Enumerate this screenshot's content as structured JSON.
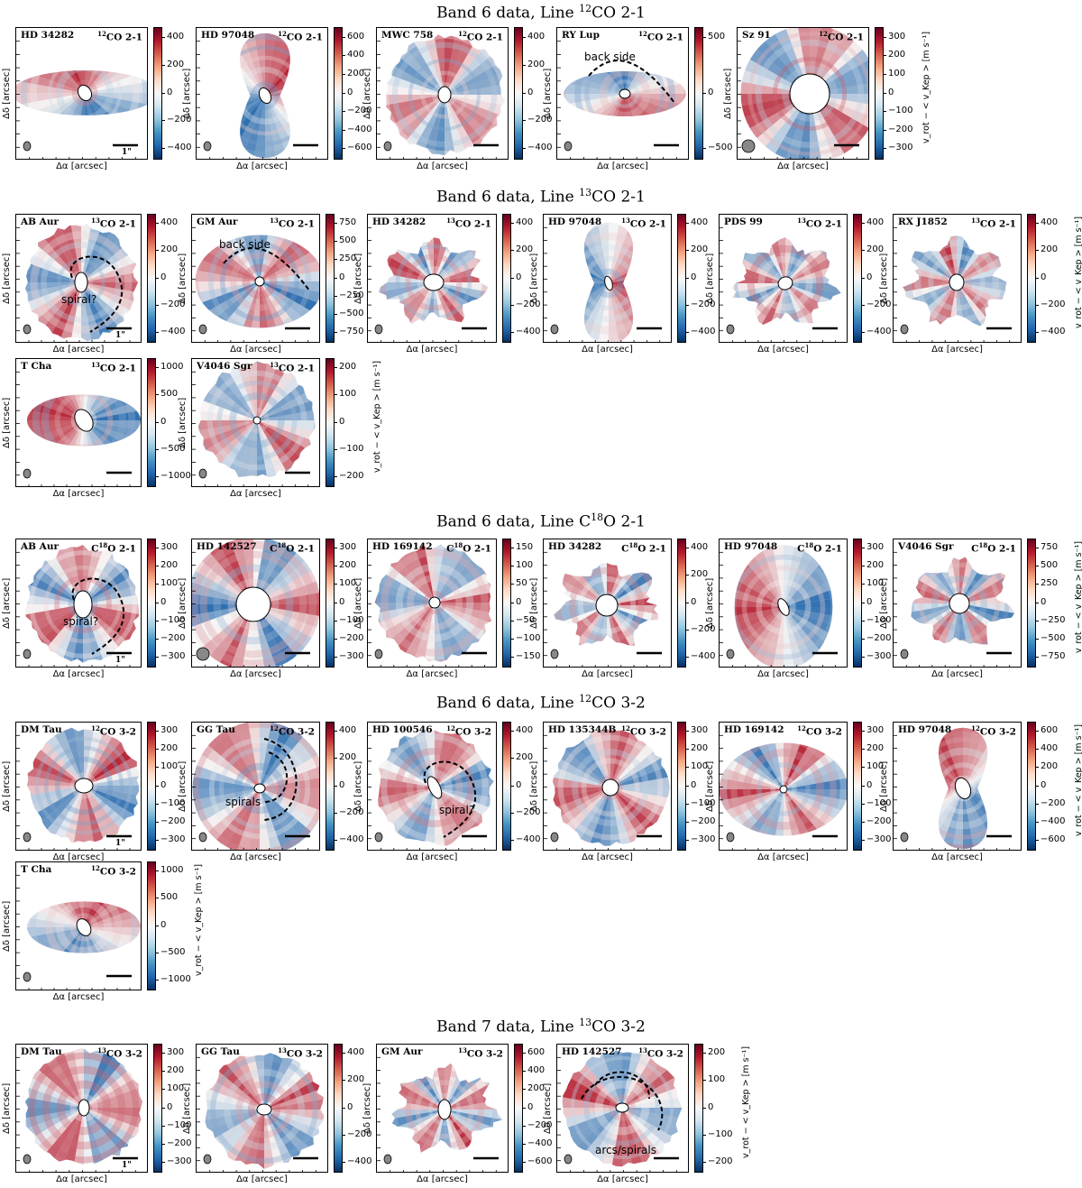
{
  "axis": {
    "x_label": "Δα [arcsec]",
    "y_label": "Δδ [arcsec]",
    "cbar_label": "v_rot − < v_Kep > [m s⁻¹]"
  },
  "colors": {
    "red": "#b2182b",
    "blue": "#2166ac",
    "white": "#f7f7f7"
  },
  "sections": [
    {
      "id": "s1",
      "title": "Band 6 data, Line ¹²CO 2-1",
      "title_main": "Band 6 data, Line ",
      "title_sup": "12",
      "title_tail": "CO 2-1"
    },
    {
      "id": "s2",
      "title": "Band 6 data, Line ¹³CO 2-1",
      "title_main": "Band 6 data, Line ",
      "title_sup": "13",
      "title_tail": "CO 2-1"
    },
    {
      "id": "s3",
      "title": "Band 6 data, Line C¹⁸O 2-1",
      "title_main": "Band 6 data, Line C",
      "title_sup": "18",
      "title_tail": "O 2-1"
    },
    {
      "id": "s4",
      "title": "Band 6 data, Line ¹²CO 3-2",
      "title_main": "Band 6 data, Line ",
      "title_sup": "12",
      "title_tail": "CO 3-2"
    },
    {
      "id": "s5",
      "title": "Band 7 data, Line ¹³CO 3-2",
      "title_main": "Band 7 data, Line ",
      "title_sup": "13",
      "title_tail": "CO 3-2"
    }
  ],
  "panels": [
    {
      "name": "HD 34282",
      "line_sup": "12",
      "line": "CO 2-1",
      "ticks": [
        "400",
        "200",
        "0",
        "−200",
        "−400"
      ],
      "scale": "1\""
    },
    {
      "name": "HD 97048",
      "line_sup": "12",
      "line": "CO 2-1",
      "ticks": [
        "600",
        "400",
        "200",
        "0",
        "−200",
        "−400",
        "−600"
      ]
    },
    {
      "name": "MWC 758",
      "line_sup": "12",
      "line": "CO 2-1",
      "ticks": [
        "400",
        "200",
        "0",
        "−200",
        "−400"
      ]
    },
    {
      "name": "RY Lup",
      "line_sup": "12",
      "line": "CO 2-1",
      "ticks": [
        "500",
        "0",
        "−500"
      ],
      "annotation": "back side"
    },
    {
      "name": "Sz 91",
      "line_sup": "12",
      "line": "CO 2-1",
      "ticks": [
        "300",
        "200",
        "100",
        "0",
        "−100",
        "−200",
        "−300"
      ],
      "cbar_label": true
    },
    {
      "name": "AB Aur",
      "line_sup": "13",
      "line": "CO 2-1",
      "ticks": [
        "400",
        "200",
        "0",
        "−200",
        "−400"
      ],
      "annotation": "spiral?",
      "scale": "1\""
    },
    {
      "name": "GM Aur",
      "line_sup": "13",
      "line": "CO 2-1",
      "ticks": [
        "750",
        "500",
        "250",
        "0",
        "−250",
        "−500",
        "−750"
      ],
      "annotation": "back side"
    },
    {
      "name": "HD 34282",
      "line_sup": "13",
      "line": "CO 2-1",
      "ticks": [
        "400",
        "200",
        "0",
        "−200",
        "−400"
      ]
    },
    {
      "name": "HD 97048",
      "line_sup": "13",
      "line": "CO 2-1",
      "ticks": [
        "400",
        "200",
        "0",
        "−200",
        "−400"
      ]
    },
    {
      "name": "PDS 99",
      "line_sup": "13",
      "line": "CO 2-1",
      "ticks": [
        "400",
        "200",
        "0",
        "−200",
        "−400"
      ]
    },
    {
      "name": "RX J1852",
      "line_sup": "13",
      "line": "CO 2-1",
      "ticks": [
        "400",
        "200",
        "0",
        "−200",
        "−400"
      ],
      "cbar_label": true
    },
    {
      "name": "T Cha",
      "line_sup": "13",
      "line": "CO 2-1",
      "ticks": [
        "1000",
        "500",
        "0",
        "−500",
        "−1000"
      ]
    },
    {
      "name": "V4046 Sgr",
      "line_sup": "13",
      "line": "CO 2-1",
      "ticks": [
        "200",
        "100",
        "0",
        "−100",
        "−200"
      ],
      "cbar_label": true
    },
    {
      "name": "AB Aur",
      "line_pre": "C",
      "line_sup": "18",
      "line": "O 2-1",
      "ticks": [
        "300",
        "200",
        "100",
        "0",
        "−100",
        "−200",
        "−300"
      ],
      "annotation": "spiral?",
      "scale": "1\""
    },
    {
      "name": "HD 142527",
      "line_pre": "C",
      "line_sup": "18",
      "line": "O 2-1",
      "ticks": [
        "300",
        "200",
        "100",
        "0",
        "−100",
        "−200",
        "−300"
      ]
    },
    {
      "name": "HD 169142",
      "line_pre": "C",
      "line_sup": "18",
      "line": "O 2-1",
      "ticks": [
        "150",
        "100",
        "50",
        "0",
        "−50",
        "−100",
        "−150"
      ]
    },
    {
      "name": "HD 34282",
      "line_pre": "C",
      "line_sup": "18",
      "line": "O 2-1",
      "ticks": [
        "400",
        "200",
        "0",
        "−200",
        "−400"
      ]
    },
    {
      "name": "HD 97048",
      "line_pre": "C",
      "line_sup": "18",
      "line": "O 2-1",
      "ticks": [
        "300",
        "200",
        "100",
        "0",
        "−100",
        "−200",
        "−300"
      ]
    },
    {
      "name": "V4046 Sgr",
      "line_pre": "C",
      "line_sup": "18",
      "line": "O 2-1",
      "ticks": [
        "750",
        "500",
        "250",
        "0",
        "−250",
        "−500",
        "−750"
      ],
      "cbar_label": true
    },
    {
      "name": "DM Tau",
      "line_sup": "12",
      "line": "CO 3-2",
      "ticks": [
        "300",
        "200",
        "100",
        "0",
        "−100",
        "−200",
        "−300"
      ],
      "scale": "1\""
    },
    {
      "name": "GG Tau",
      "line_sup": "12",
      "line": "CO 3-2",
      "ticks": [
        "400",
        "200",
        "0",
        "−200",
        "−400"
      ],
      "annotation": "spirals"
    },
    {
      "name": "HD 100546",
      "line_sup": "12",
      "line": "CO 3-2",
      "ticks": [
        "400",
        "200",
        "0",
        "−200",
        "−400"
      ],
      "annotation": "spiral?"
    },
    {
      "name": "HD 135344B",
      "line_sup": "12",
      "line": "CO 3-2",
      "ticks": [
        "300",
        "200",
        "100",
        "0",
        "−100",
        "−200",
        "−300"
      ]
    },
    {
      "name": "HD 169142",
      "line_sup": "12",
      "line": "CO 3-2",
      "ticks": [
        "300",
        "200",
        "100",
        "0",
        "−100",
        "−200",
        "−300"
      ]
    },
    {
      "name": "HD 97048",
      "line_sup": "12",
      "line": "CO 3-2",
      "ticks": [
        "600",
        "400",
        "200",
        "0",
        "−200",
        "−400",
        "−600"
      ],
      "cbar_label": true
    },
    {
      "name": "T Cha",
      "line_sup": "12",
      "line": "CO 3-2",
      "ticks": [
        "1000",
        "500",
        "0",
        "−500",
        "−1000"
      ],
      "cbar_label": true
    },
    {
      "name": "DM Tau",
      "line_sup": "13",
      "line": "CO 3-2",
      "ticks": [
        "300",
        "200",
        "100",
        "0",
        "−100",
        "−200",
        "−300"
      ],
      "scale": "1\""
    },
    {
      "name": "GG Tau",
      "line_sup": "13",
      "line": "CO 3-2",
      "ticks": [
        "400",
        "200",
        "0",
        "−200",
        "−400"
      ]
    },
    {
      "name": "GM Aur",
      "line_sup": "13",
      "line": "CO 3-2",
      "ticks": [
        "600",
        "400",
        "200",
        "0",
        "−200",
        "−400",
        "−600"
      ]
    },
    {
      "name": "HD 142527",
      "line_sup": "13",
      "line": "CO 3-2",
      "ticks": [
        "200",
        "100",
        "0",
        "−100",
        "−200"
      ],
      "annotation": "arcs/spirals",
      "cbar_label": true
    }
  ]
}
